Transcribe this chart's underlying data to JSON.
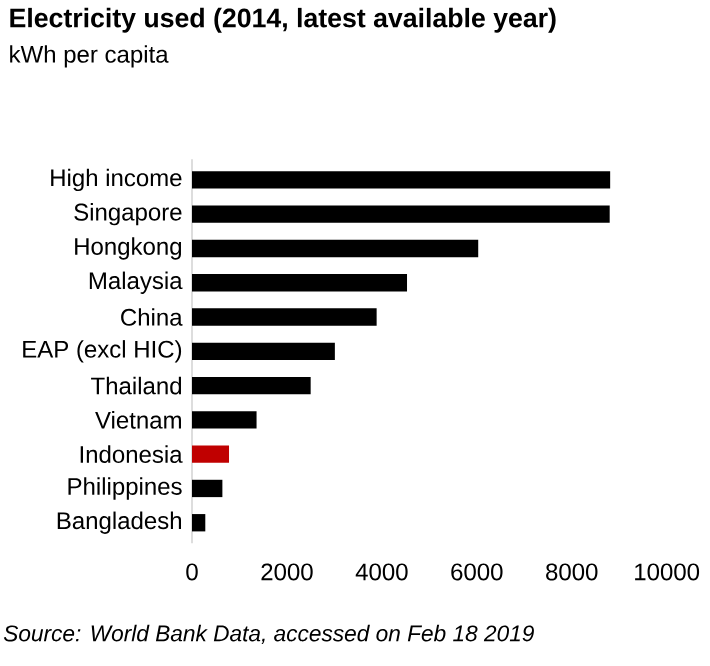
{
  "chart_data": {
    "type": "bar",
    "orientation": "horizontal",
    "title": "Electricity used (2014, latest available year)",
    "subtitle": "kWh per capita",
    "categories": [
      "High income",
      "Singapore",
      "Hongkong",
      "Malaysia",
      "China",
      "EAP (excl HIC)",
      "Thailand",
      "Vietnam",
      "Indonesia",
      "Philippines",
      "Bangladesh"
    ],
    "values": [
      8810,
      8800,
      6030,
      4530,
      3890,
      3010,
      2500,
      1360,
      780,
      640,
      280
    ],
    "colors": [
      "#000000",
      "#000000",
      "#000000",
      "#000000",
      "#000000",
      "#000000",
      "#000000",
      "#000000",
      "#c00000",
      "#000000",
      "#000000"
    ],
    "xlim": [
      0,
      10000
    ],
    "xticks": [
      0,
      2000,
      4000,
      6000,
      8000,
      10000
    ],
    "grid": false,
    "annotations": [
      "Source: World Bank Data, accessed on Feb 18 2019"
    ]
  }
}
